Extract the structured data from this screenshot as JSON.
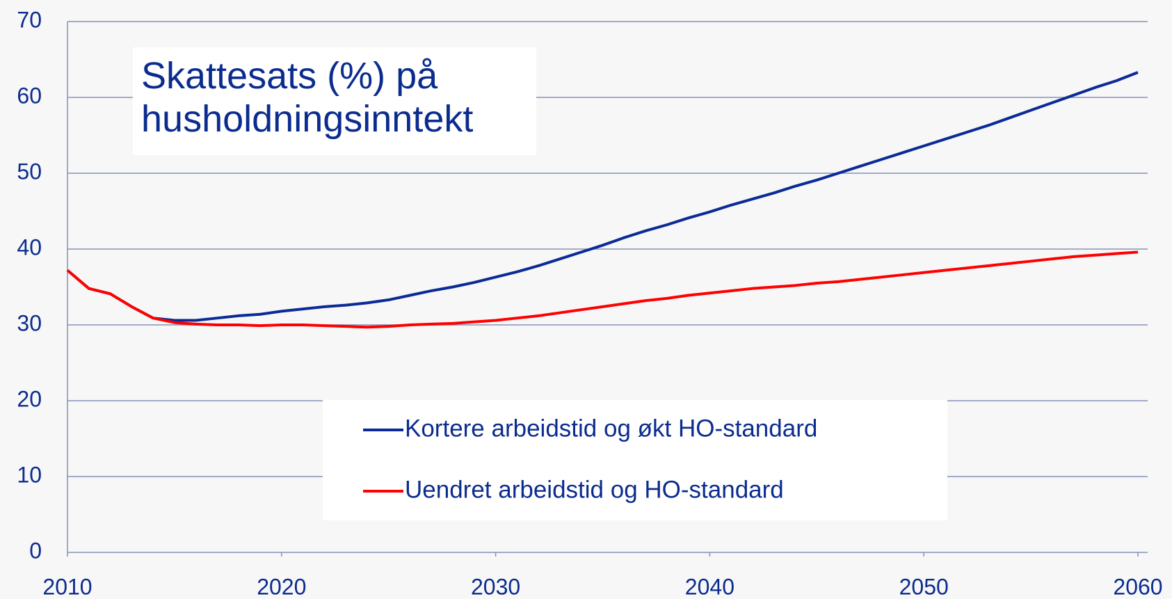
{
  "chart_data": {
    "type": "line",
    "title": "Skattesats (%) på husholdningsinntekt",
    "x": [
      2010,
      2011,
      2012,
      2013,
      2014,
      2015,
      2016,
      2017,
      2018,
      2019,
      2020,
      2021,
      2022,
      2023,
      2024,
      2025,
      2026,
      2027,
      2028,
      2029,
      2030,
      2031,
      2032,
      2033,
      2034,
      2035,
      2036,
      2037,
      2038,
      2039,
      2040,
      2041,
      2042,
      2043,
      2044,
      2045,
      2046,
      2047,
      2048,
      2049,
      2050,
      2051,
      2052,
      2053,
      2054,
      2055,
      2056,
      2057,
      2058,
      2059,
      2060
    ],
    "series": [
      {
        "name": "Kortere arbeidstid og økt HO-standard",
        "color": "#0a2b96",
        "values": [
          37.2,
          34.8,
          34.1,
          32.4,
          30.9,
          30.6,
          30.6,
          30.9,
          31.2,
          31.4,
          31.8,
          32.1,
          32.4,
          32.6,
          32.9,
          33.3,
          33.9,
          34.5,
          35.0,
          35.6,
          36.3,
          37.0,
          37.8,
          38.7,
          39.6,
          40.5,
          41.5,
          42.4,
          43.2,
          44.1,
          44.9,
          45.8,
          46.6,
          47.4,
          48.3,
          49.1,
          50.0,
          50.9,
          51.8,
          52.7,
          53.6,
          54.5,
          55.4,
          56.3,
          57.3,
          58.3,
          59.3,
          60.3,
          61.3,
          62.2,
          63.3
        ]
      },
      {
        "name": "Uendret arbeidstid og HO-standard",
        "color": "#ff0000",
        "values": [
          37.2,
          34.8,
          34.1,
          32.4,
          30.9,
          30.3,
          30.1,
          30.0,
          30.0,
          29.9,
          30.0,
          30.0,
          29.9,
          29.8,
          29.7,
          29.8,
          30.0,
          30.1,
          30.2,
          30.4,
          30.6,
          30.9,
          31.2,
          31.6,
          32.0,
          32.4,
          32.8,
          33.2,
          33.5,
          33.9,
          34.2,
          34.5,
          34.8,
          35.0,
          35.2,
          35.5,
          35.7,
          36.0,
          36.3,
          36.6,
          36.9,
          37.2,
          37.5,
          37.8,
          38.1,
          38.4,
          38.7,
          39.0,
          39.2,
          39.4,
          39.6
        ]
      }
    ],
    "xlim": [
      2010,
      2060
    ],
    "xticks": [
      2010,
      2020,
      2030,
      2040,
      2050,
      2060
    ],
    "ylim": [
      0,
      70
    ],
    "yticks": [
      0,
      10,
      20,
      30,
      40,
      50,
      60,
      70
    ],
    "grid": true,
    "legend": "lower center"
  }
}
